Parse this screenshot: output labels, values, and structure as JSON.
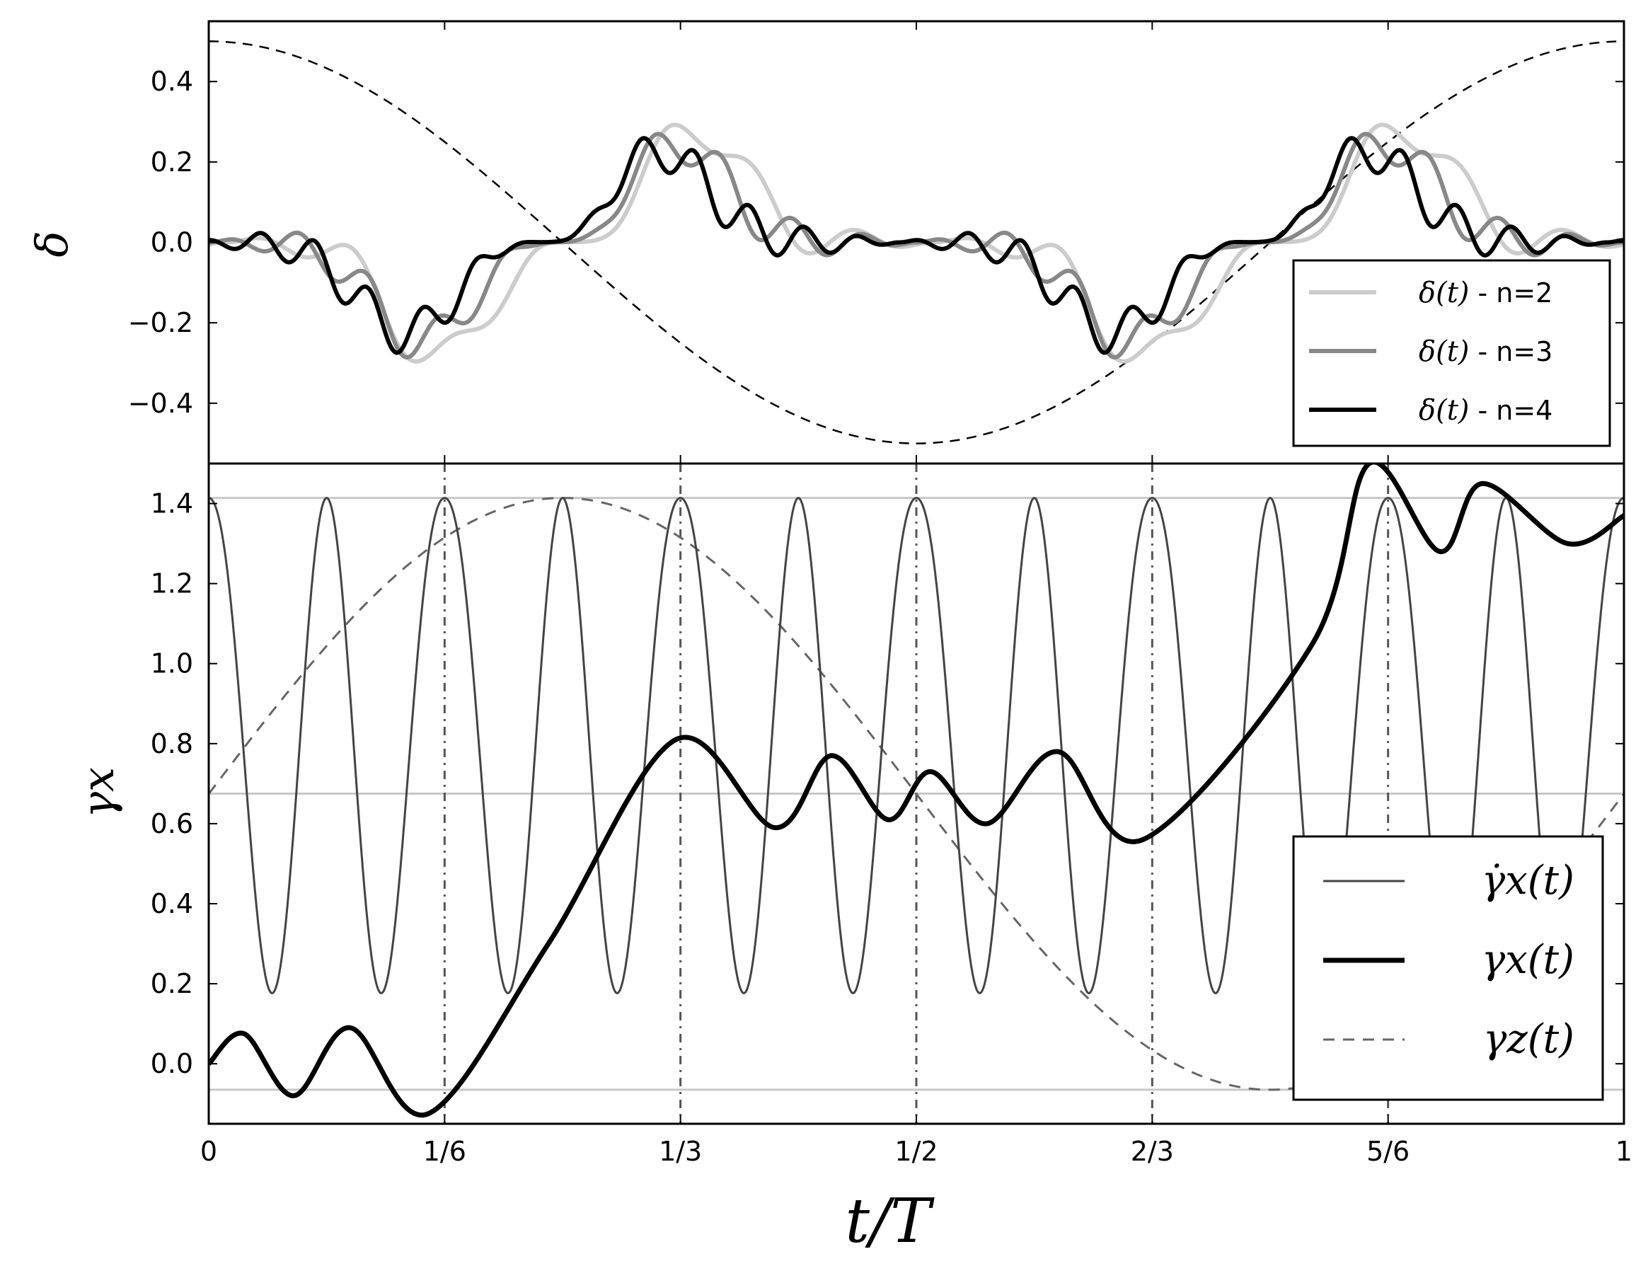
{
  "chart_data": [
    {
      "panel": "top",
      "type": "line",
      "ylabel": "δ",
      "xlim": [
        0,
        1
      ],
      "ylim": [
        -0.55,
        0.55
      ],
      "yticks": [
        -0.4,
        -0.2,
        0.0,
        0.2,
        0.4
      ],
      "ytick_labels": [
        "−0.4",
        "−0.2",
        "0.0",
        "0.2",
        "0.4"
      ],
      "grid": false,
      "legend_position": "lower-right",
      "reference_curve": {
        "style": "dashed",
        "color": "#000000",
        "amplitude": 0.5,
        "shape": "0.5·cos(2πt)"
      },
      "series": [
        {
          "name": "δ(t) - n=2",
          "label_math": "δ(t)",
          "label_suffix": " - n=2",
          "color": "#cccccc",
          "n": 2,
          "amplitude": 0.26
        },
        {
          "name": "δ(t) - n=3",
          "label_math": "δ(t)",
          "label_suffix": " - n=3",
          "color": "#888888",
          "n": 3,
          "amplitude": 0.22
        },
        {
          "name": "δ(t) - n=4",
          "label_math": "δ(t)",
          "label_suffix": " - n=4",
          "color": "#000000",
          "n": 4,
          "amplitude": 0.2
        }
      ]
    },
    {
      "panel": "bottom",
      "type": "line",
      "xlabel": "t/T",
      "ylabel": "γx",
      "xlim": [
        0,
        1
      ],
      "ylim": [
        -0.15,
        1.5
      ],
      "xticks": [
        0,
        0.16667,
        0.33333,
        0.5,
        0.66667,
        0.83333,
        1
      ],
      "xtick_labels": [
        "0",
        "1/6",
        "1/3",
        "1/2",
        "2/3",
        "5/6",
        "1"
      ],
      "yticks": [
        0.0,
        0.2,
        0.4,
        0.6,
        0.8,
        1.0,
        1.2,
        1.4
      ],
      "ytick_labels": [
        "0.0",
        "0.2",
        "0.4",
        "0.6",
        "0.8",
        "1.0",
        "1.2",
        "1.4"
      ],
      "grid": false,
      "legend_position": "lower-right",
      "horizontal_lines": [
        1.414,
        0.675,
        -0.065
      ],
      "vertical_lines": [
        0.16667,
        0.33333,
        0.5,
        0.66667,
        0.83333
      ],
      "series": [
        {
          "name": "γ̇x(t)",
          "label_math": "γ̇x(t)",
          "color": "#444444",
          "style": "solid-thin",
          "range": [
            -0.065,
            1.414
          ]
        },
        {
          "name": "γx(t)",
          "label_math": "γx(t)",
          "color": "#000000",
          "style": "solid-thick",
          "points": [
            [
              0,
              0.0
            ],
            [
              0.025,
              0.075
            ],
            [
              0.06,
              -0.08
            ],
            [
              0.1,
              0.09
            ],
            [
              0.155,
              -0.125
            ],
            [
              0.24,
              0.3
            ],
            [
              0.33,
              0.81
            ],
            [
              0.4,
              0.59
            ],
            [
              0.44,
              0.77
            ],
            [
              0.48,
              0.61
            ],
            [
              0.51,
              0.73
            ],
            [
              0.55,
              0.6
            ],
            [
              0.6,
              0.78
            ],
            [
              0.66,
              0.56
            ],
            [
              0.78,
              1.05
            ],
            [
              0.82,
              1.5
            ],
            [
              0.87,
              1.28
            ],
            [
              0.9,
              1.45
            ],
            [
              0.96,
              1.3
            ],
            [
              1.0,
              1.37
            ]
          ]
        },
        {
          "name": "γz(t)",
          "label_math": "γz(t)",
          "color": "#666666",
          "style": "dashed",
          "range": [
            -0.065,
            1.414
          ]
        }
      ]
    }
  ]
}
